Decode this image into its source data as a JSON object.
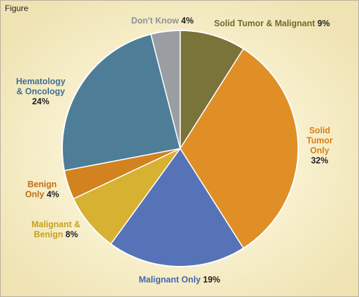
{
  "figure_label": "Figure",
  "chart_data": {
    "type": "pie",
    "title": "",
    "slices": [
      {
        "name": "Solid Tumor & Malignant",
        "value": 9,
        "color": "#7a733a",
        "label_lines": [
          "Solid Tumor & Malignant"
        ],
        "pct_label": "9%",
        "pct_inline": true
      },
      {
        "name": "Solid Tumor Only",
        "value": 32,
        "color": "#e08f27",
        "label_lines": [
          "Solid",
          "Tumor",
          "Only"
        ],
        "pct_label": "32%",
        "pct_inline": false
      },
      {
        "name": "Malignant Only",
        "value": 19,
        "color": "#5573b6",
        "label_lines": [
          "Malignant Only"
        ],
        "pct_label": "19%",
        "pct_inline": true
      },
      {
        "name": "Malignant & Benign",
        "value": 8,
        "color": "#d6b132",
        "label_lines": [
          "Malignant &",
          "Benign"
        ],
        "pct_label": "8%",
        "pct_inline": true
      },
      {
        "name": "Benign Only",
        "value": 4,
        "color": "#d2821f",
        "label_lines": [
          "Benign",
          "Only"
        ],
        "pct_label": "4%",
        "pct_inline": true
      },
      {
        "name": "Hematology & Oncology",
        "value": 24,
        "color": "#4e7d98",
        "label_lines": [
          "Hematology",
          "& Oncology"
        ],
        "pct_label": "24%",
        "pct_inline": false
      },
      {
        "name": "Don't Know",
        "value": 4,
        "color": "#9a9ea3",
        "label_lines": [
          "Don't Know"
        ],
        "pct_label": "4%",
        "pct_inline": true
      }
    ],
    "label_colors": [
      "#6f6a2c",
      "#d97f12",
      "#4468ad",
      "#c9a01d",
      "#c06e14",
      "#3f7090",
      "#8e9297"
    ],
    "start_angle": "12 o'clock",
    "direction": "clockwise",
    "legend": "none"
  }
}
